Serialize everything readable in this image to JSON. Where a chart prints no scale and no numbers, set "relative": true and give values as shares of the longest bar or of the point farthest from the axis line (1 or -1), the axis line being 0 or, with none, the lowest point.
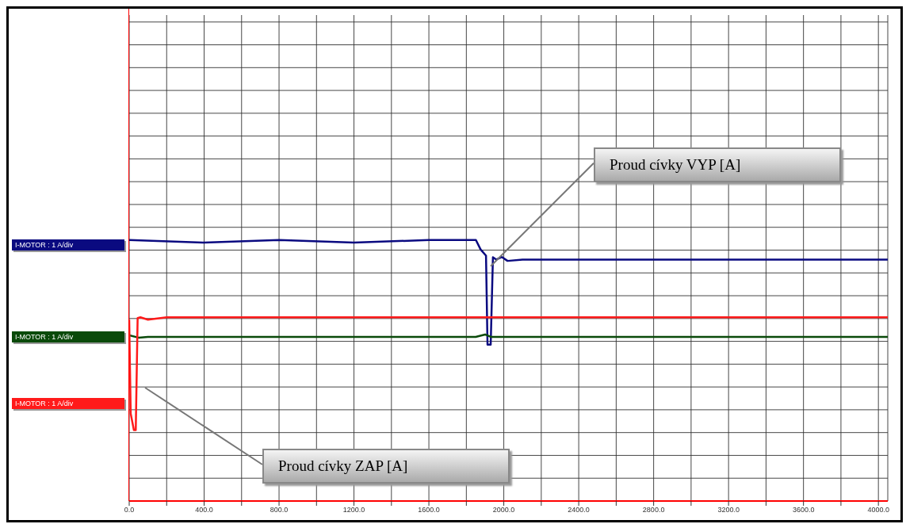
{
  "chart_data": {
    "type": "line",
    "relative": true,
    "grid": true,
    "legend": "left",
    "marker": "none",
    "line_style": "solid",
    "xlim": [
      0,
      4050
    ],
    "xticks": [
      {
        "value": 0,
        "label": "0.0"
      },
      {
        "value": 200,
        "label": null
      },
      {
        "value": 400,
        "label": "400.0"
      },
      {
        "value": 600,
        "label": null
      },
      {
        "value": 800,
        "label": "800.0"
      },
      {
        "value": 1000,
        "label": null
      },
      {
        "value": 1200,
        "label": "1200.0"
      },
      {
        "value": 1400,
        "label": null
      },
      {
        "value": 1600,
        "label": "1600.0"
      },
      {
        "value": 1800,
        "label": null
      },
      {
        "value": 2000,
        "label": "2000.0"
      },
      {
        "value": 2200,
        "label": null
      },
      {
        "value": 2400,
        "label": "2400.0"
      },
      {
        "value": 2600,
        "label": null
      },
      {
        "value": 2800,
        "label": "2800.0"
      },
      {
        "value": 3000,
        "label": null
      },
      {
        "value": 3200,
        "label": "3200.0"
      },
      {
        "value": 3400,
        "label": null
      },
      {
        "value": 3600,
        "label": "3600.0"
      },
      {
        "value": 3800,
        "label": null
      },
      {
        "value": 4000,
        "label": "4000.0"
      }
    ],
    "series": [
      {
        "name": "I-MOTOR : 1 A/div",
        "color": "#0a0a80",
        "x": [
          0,
          400,
          800,
          1200,
          1600,
          1851,
          1876,
          1905,
          1913,
          1930,
          1942,
          1960,
          1990,
          2020,
          2100,
          2400,
          3000,
          4050
        ],
        "values": [
          1.0,
          0.99,
          1.0,
          0.99,
          1.0,
          1.0,
          0.964,
          0.94,
          0.599,
          0.599,
          0.934,
          0.925,
          0.935,
          0.92,
          0.925,
          0.925,
          0.925,
          0.925
        ]
      },
      {
        "name": "I-MOTOR : 1 A/div",
        "color": "#0a4a0a",
        "x": [
          0,
          50,
          100,
          1850,
          1900,
          1930,
          2000,
          4050
        ],
        "values": [
          0.635,
          0.626,
          0.629,
          0.629,
          0.638,
          0.629,
          0.629,
          0.629
        ]
      },
      {
        "name": "I-MOTOR : 1 A/div",
        "color": "#ff1a1a",
        "x": [
          0,
          8,
          25,
          35,
          45,
          60,
          100,
          200,
          1000,
          2000,
          3000,
          4050
        ],
        "values": [
          0.695,
          0.335,
          0.272,
          0.272,
          0.701,
          0.704,
          0.695,
          0.704,
          0.704,
          0.704,
          0.704,
          0.704
        ]
      }
    ],
    "annotations": [
      {
        "text": "Proud cívky VYP [A]",
        "x": 1930,
        "y": 0.9
      },
      "Proud cívky ZAP [A]"
    ]
  }
}
